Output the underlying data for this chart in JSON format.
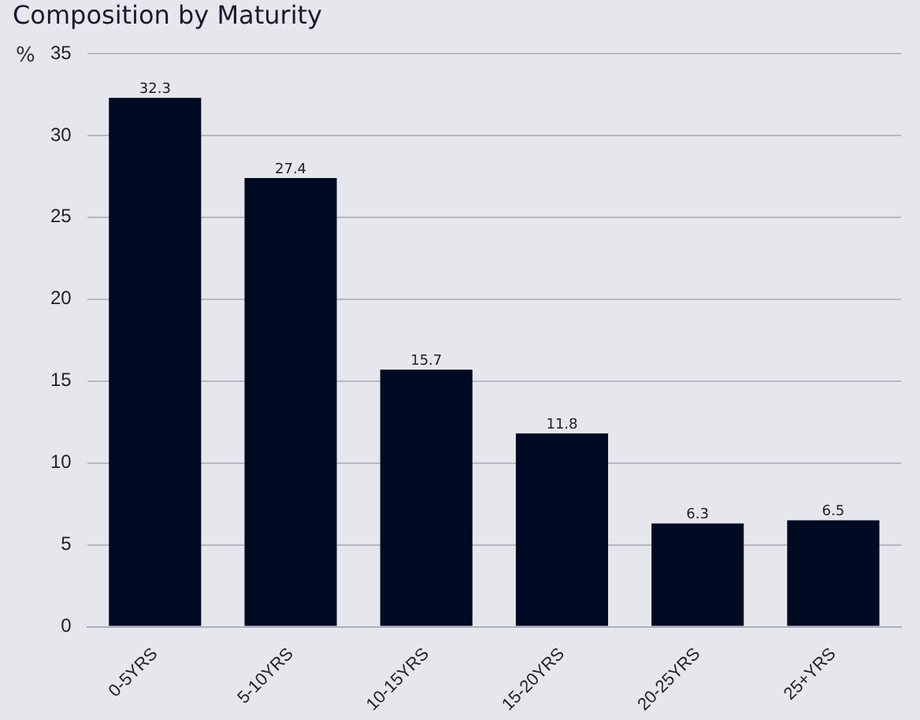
{
  "chart_data": {
    "type": "bar",
    "title": "Composition by Maturity",
    "ylabel": "%",
    "categories": [
      "0-5YRS",
      "5-10YRS",
      "10-15YRS",
      "15-20YRS",
      "20-25YRS",
      "25+YRS"
    ],
    "values": [
      32.3,
      27.4,
      15.7,
      11.8,
      6.3,
      6.5
    ],
    "color": "#000a23",
    "ylim": [
      0,
      35
    ],
    "yticks": [
      0,
      5,
      10,
      15,
      20,
      25,
      30,
      35
    ],
    "grid": "y",
    "data_labels": true
  }
}
